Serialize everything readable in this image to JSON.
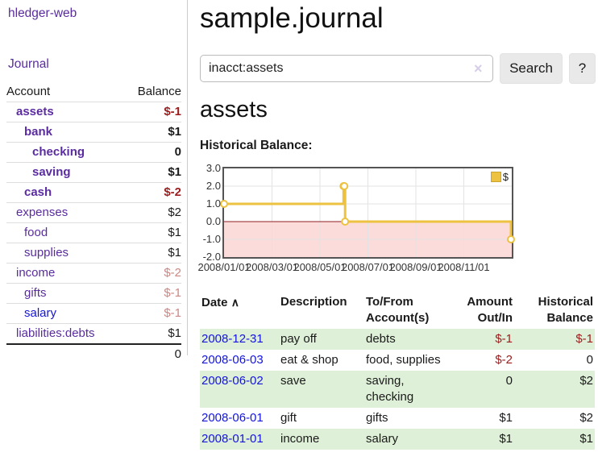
{
  "app": {
    "brand": "hledger-web",
    "nav_journal": "Journal"
  },
  "sidebar": {
    "header": {
      "account": "Account",
      "balance": "Balance"
    },
    "accounts": [
      {
        "name": "assets",
        "depth": 1,
        "bold": true,
        "balance": "$-1",
        "neg": "strong"
      },
      {
        "name": "bank",
        "depth": 2,
        "bold": true,
        "balance": "$1"
      },
      {
        "name": "checking",
        "depth": 3,
        "bold": true,
        "balance": "0"
      },
      {
        "name": "saving",
        "depth": 3,
        "bold": true,
        "balance": "$1"
      },
      {
        "name": "cash",
        "depth": 2,
        "bold": true,
        "balance": "$-2",
        "neg": "strong"
      },
      {
        "name": "expenses",
        "depth": 1,
        "bold": false,
        "balance": "$2"
      },
      {
        "name": "food",
        "depth": 2,
        "bold": false,
        "balance": "$1"
      },
      {
        "name": "supplies",
        "depth": 2,
        "bold": false,
        "balance": "$1"
      },
      {
        "name": "income",
        "depth": 1,
        "bold": false,
        "balance": "$-2",
        "neg": "soft"
      },
      {
        "name": "gifts",
        "depth": 2,
        "bold": false,
        "balance": "$-1",
        "neg": "soft"
      },
      {
        "name": "salary",
        "depth": 2,
        "bold": false,
        "balance": "$-1",
        "neg": "soft",
        "link_color": "blue"
      },
      {
        "name": "liabilities:debts",
        "depth": 1,
        "bold": false,
        "balance": "$1"
      }
    ],
    "total": "0"
  },
  "header": {
    "title": "sample.journal"
  },
  "search": {
    "value": "inacct:assets",
    "clear_icon": "×",
    "button": "Search",
    "help_button": "?"
  },
  "account_page": {
    "title": "assets",
    "chart_label": "Historical Balance:"
  },
  "chart_data": {
    "type": "line",
    "title": "Historical Balance",
    "legend": [
      {
        "label": "$",
        "color": "#edc240"
      }
    ],
    "ylim": [
      -2,
      3
    ],
    "y_ticks": [
      "3.0",
      "2.0",
      "1.0",
      "0.0",
      "-1.0",
      "-2.0"
    ],
    "x_tick_labels": [
      "2008/01/01",
      "2008/03/01",
      "2008/05/01",
      "2008/07/01",
      "2008/09/01",
      "2008/11/01"
    ],
    "total_days": 366,
    "points": [
      {
        "date": "2008-01-01",
        "day": 0,
        "value": 1
      },
      {
        "date": "2008-06-01",
        "day": 152,
        "value": 2
      },
      {
        "date": "2008-06-02",
        "day": 153,
        "value": 2
      },
      {
        "date": "2008-06-03",
        "day": 154,
        "value": 0
      },
      {
        "date": "2008-12-31",
        "day": 365,
        "value": -1
      }
    ],
    "series_color": "#edc240",
    "marker_fill": "#ffffff",
    "negative_region_fill": "#fbdcdb",
    "zero_line_color": "#8f1f1f",
    "grid_color": "#e3e3e3",
    "grid": true,
    "legend_position": "top-right"
  },
  "register": {
    "columns": [
      {
        "line1": "Date",
        "line2": "",
        "align": "left",
        "sort_icon": "∧",
        "sortable": true
      },
      {
        "line1": "Description",
        "line2": "",
        "align": "left"
      },
      {
        "line1": "To/From",
        "line2": "Account(s)",
        "align": "left"
      },
      {
        "line1": "Amount",
        "line2": "Out/In",
        "align": "right"
      },
      {
        "line1": "Historical",
        "line2": "Balance",
        "align": "right"
      }
    ],
    "rows": [
      {
        "date": "2008-12-31",
        "description": "pay off",
        "accounts": "debts",
        "amount": "$-1",
        "amount_negative": true,
        "balance": "$-1",
        "balance_negative": true,
        "highlight": true
      },
      {
        "date": "2008-06-03",
        "description": "eat & shop",
        "accounts": "food, supplies",
        "amount": "$-2",
        "amount_negative": true,
        "balance": "0",
        "balance_negative": false,
        "highlight": false
      },
      {
        "date": "2008-06-02",
        "description": "save",
        "accounts": "saving,\nchecking",
        "amount": "0",
        "amount_negative": false,
        "balance": "$2",
        "balance_negative": false,
        "highlight": true
      },
      {
        "date": "2008-06-01",
        "description": "gift",
        "accounts": "gifts",
        "amount": "$1",
        "amount_negative": false,
        "balance": "$2",
        "balance_negative": false,
        "highlight": false
      },
      {
        "date": "2008-01-01",
        "description": "income",
        "accounts": "salary",
        "amount": "$1",
        "amount_negative": false,
        "balance": "$1",
        "balance_negative": false,
        "highlight": true
      }
    ]
  }
}
